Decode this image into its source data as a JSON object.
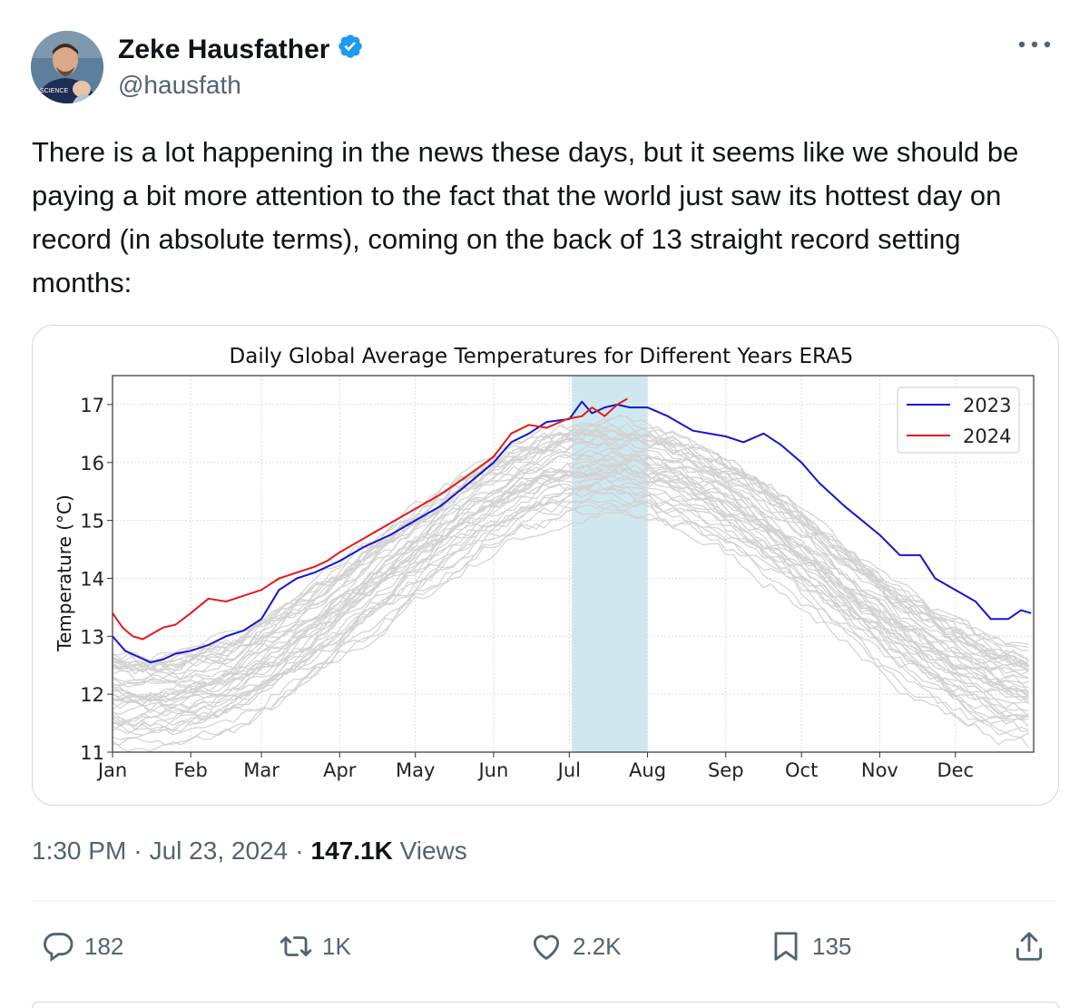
{
  "author": {
    "name": "Zeke Hausfather",
    "handle": "@hausfath",
    "verified": true
  },
  "tweet": {
    "text": "There is a lot happening in the news these days, but it seems like we should be paying a bit more attention to the fact that the world just saw its hottest day on record (in absolute terms), coming on the back of 13 straight record setting months:"
  },
  "meta": {
    "time": "1:30 PM",
    "separator": "·",
    "date": "Jul 23, 2024",
    "views_count": "147.1K",
    "views_label": "Views"
  },
  "actions": {
    "replies": "182",
    "reposts": "1K",
    "likes": "2.2K",
    "bookmarks": "135"
  },
  "colors": {
    "series_2023": "#1515d0",
    "series_2024": "#e21b1b",
    "background_years": "#d2d2d2",
    "highlight": "#cfe8f0"
  },
  "chart_data": {
    "type": "line",
    "title": "Daily Global Average Temperatures for Different Years ERA5",
    "ylabel": "Temperature (°C)",
    "xlabel": "",
    "ylim": [
      11,
      17.5
    ],
    "yticks": [
      11,
      12,
      13,
      14,
      15,
      16,
      17
    ],
    "xlim": [
      0,
      365
    ],
    "month_ticks": [
      {
        "label": "Jan",
        "day": 0
      },
      {
        "label": "Feb",
        "day": 31
      },
      {
        "label": "Mar",
        "day": 59
      },
      {
        "label": "Apr",
        "day": 90
      },
      {
        "label": "May",
        "day": 120
      },
      {
        "label": "Jun",
        "day": 151
      },
      {
        "label": "Jul",
        "day": 181
      },
      {
        "label": "Aug",
        "day": 212
      },
      {
        "label": "Sep",
        "day": 243
      },
      {
        "label": "Oct",
        "day": 273
      },
      {
        "label": "Nov",
        "day": 304
      },
      {
        "label": "Dec",
        "day": 334
      }
    ],
    "highlight_days": [
      182,
      212
    ],
    "legend": {
      "position": "top-right"
    },
    "grid": true,
    "series": [
      {
        "name": "2023",
        "x": [
          0,
          5,
          10,
          15,
          20,
          25,
          31,
          38,
          45,
          52,
          59,
          66,
          73,
          80,
          90,
          100,
          110,
          120,
          130,
          140,
          151,
          158,
          165,
          172,
          181,
          186,
          190,
          195,
          200,
          205,
          212,
          220,
          230,
          243,
          250,
          258,
          265,
          273,
          280,
          290,
          304,
          312,
          320,
          326,
          334,
          342,
          348,
          355,
          360,
          364
        ],
        "values": [
          13.0,
          12.75,
          12.65,
          12.55,
          12.6,
          12.7,
          12.75,
          12.85,
          13.0,
          13.1,
          13.3,
          13.8,
          14.0,
          14.1,
          14.3,
          14.55,
          14.75,
          15.0,
          15.25,
          15.6,
          16.0,
          16.35,
          16.5,
          16.7,
          16.75,
          17.05,
          16.85,
          16.95,
          17.0,
          16.95,
          16.95,
          16.8,
          16.55,
          16.45,
          16.35,
          16.5,
          16.3,
          16.0,
          15.65,
          15.25,
          14.75,
          14.4,
          14.4,
          14.0,
          13.8,
          13.6,
          13.3,
          13.3,
          13.45,
          13.4
        ]
      },
      {
        "name": "2024",
        "x": [
          0,
          4,
          8,
          12,
          16,
          20,
          25,
          31,
          38,
          45,
          52,
          59,
          66,
          73,
          80,
          85,
          90,
          100,
          110,
          120,
          130,
          140,
          151,
          158,
          165,
          172,
          180,
          186,
          190,
          195,
          200,
          204
        ],
        "values": [
          13.4,
          13.15,
          13.0,
          12.95,
          13.05,
          13.15,
          13.2,
          13.4,
          13.65,
          13.6,
          13.7,
          13.8,
          14.0,
          14.1,
          14.2,
          14.3,
          14.45,
          14.7,
          14.95,
          15.2,
          15.45,
          15.75,
          16.1,
          16.5,
          16.65,
          16.6,
          16.75,
          16.8,
          16.95,
          16.8,
          17.0,
          17.1
        ]
      }
    ]
  }
}
